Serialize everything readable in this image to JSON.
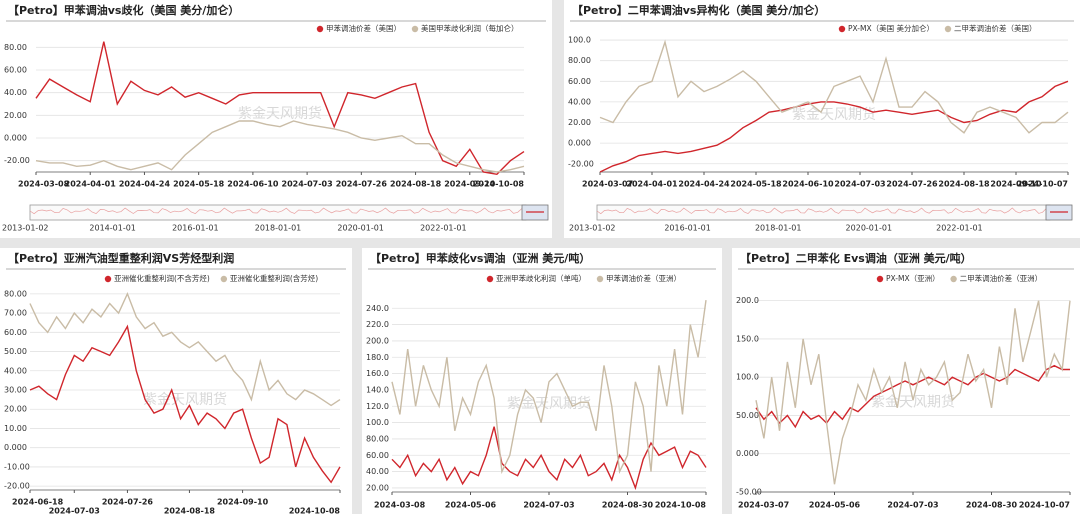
{
  "chart_data": [
    {
      "type": "line",
      "title": "【Petro】甲苯调油vs歧化（美国 美分/加仑）",
      "watermark": "紫金天风期货",
      "grid": true,
      "categories": [
        "2024-03-08",
        null,
        null,
        null,
        "2024-04-01",
        null,
        null,
        null,
        "2024-04-24",
        null,
        null,
        null,
        "2024-05-18",
        null,
        null,
        null,
        "2024-06-10",
        null,
        null,
        null,
        "2024-07-03",
        null,
        null,
        null,
        "2024-07-26",
        null,
        null,
        null,
        "2024-08-18",
        null,
        null,
        null,
        "2024-09-10",
        null,
        null,
        null,
        "2024-10-08"
      ],
      "series": [
        {
          "name": "甲苯调油价差（美国）",
          "color": "#d0262c",
          "values": [
            35,
            52,
            45,
            38,
            32,
            85,
            30,
            50,
            42,
            38,
            45,
            36,
            40,
            35,
            30,
            38,
            40,
            40,
            40,
            40,
            40,
            40,
            10,
            40,
            38,
            35,
            40,
            45,
            48,
            5,
            -20,
            -25,
            -10,
            -30,
            -32,
            -20,
            -12
          ]
        },
        {
          "name": "美国甲苯歧化利润（每加仑）",
          "color": "#c9bca6",
          "values": [
            -20,
            -22,
            -22,
            -25,
            -24,
            -20,
            -25,
            -28,
            -25,
            -22,
            -28,
            -15,
            -5,
            5,
            10,
            15,
            15,
            12,
            10,
            15,
            12,
            10,
            8,
            5,
            0,
            -2,
            0,
            2,
            -5,
            -5,
            -15,
            -22,
            -25,
            -28,
            -30,
            -28,
            -25
          ]
        }
      ],
      "ylim": [
        -30,
        90
      ],
      "yticks": [
        {
          "value": 80,
          "label": "80.00"
        },
        {
          "value": 60,
          "label": "60.00"
        },
        {
          "value": 40,
          "label": "40.00"
        },
        {
          "value": 20,
          "label": "20.00"
        },
        {
          "value": 0,
          "label": "0.000"
        },
        {
          "value": -20,
          "label": "-20.00"
        }
      ],
      "navigator_labels": [
        "2013-01-02",
        "2014-01-01",
        "2016-01-01",
        "2018-01-01",
        "2020-01-01",
        "2022-01-01"
      ]
    },
    {
      "type": "line",
      "title": "【Petro】二甲苯调油vs异构化（美国 美分/加仑）",
      "watermark": "紫金天风期货",
      "grid": true,
      "categories": [
        "2024-03-07",
        null,
        null,
        null,
        "2024-04-01",
        null,
        null,
        null,
        "2024-04-24",
        null,
        null,
        null,
        "2024-05-18",
        null,
        null,
        null,
        "2024-06-10",
        null,
        null,
        null,
        "2024-07-03",
        null,
        null,
        null,
        "2024-07-26",
        null,
        null,
        null,
        "2024-08-18",
        null,
        null,
        null,
        "2024-09-10",
        null,
        null,
        null,
        "2024-10-07"
      ],
      "series": [
        {
          "name": "PX-MX（美国 美分加仑）",
          "color": "#d0262c",
          "values": [
            -28,
            -22,
            -18,
            -12,
            -10,
            -8,
            -10,
            -8,
            -5,
            -2,
            5,
            15,
            22,
            30,
            32,
            35,
            38,
            40,
            40,
            38,
            35,
            30,
            32,
            30,
            28,
            30,
            32,
            25,
            20,
            22,
            28,
            32,
            30,
            40,
            45,
            55,
            60
          ]
        },
        {
          "name": "二甲苯调油价差（美国）",
          "color": "#c9bca6",
          "values": [
            25,
            20,
            40,
            55,
            60,
            98,
            45,
            60,
            50,
            55,
            62,
            70,
            60,
            45,
            30,
            35,
            40,
            30,
            55,
            60,
            65,
            40,
            82,
            35,
            35,
            50,
            40,
            20,
            10,
            30,
            35,
            30,
            25,
            10,
            20,
            20,
            30
          ]
        }
      ],
      "ylim": [
        -28,
        102
      ],
      "yticks": [
        {
          "value": 100,
          "label": "100.0"
        },
        {
          "value": 80,
          "label": "80.00"
        },
        {
          "value": 60,
          "label": "60.00"
        },
        {
          "value": 40,
          "label": "40.00"
        },
        {
          "value": 20,
          "label": "20.00"
        },
        {
          "value": 0,
          "label": "0.000"
        },
        {
          "value": -20,
          "label": "-20.00"
        }
      ],
      "navigator_labels": [
        "2013-01-02",
        "2016-01-01",
        "2018-01-01",
        "2020-01-01",
        "2022-01-01"
      ]
    },
    {
      "type": "line",
      "title": "【Petro】亚洲汽油型重整利润VS芳烃型利润",
      "watermark": "紫金天风期货",
      "grid": true,
      "categories": [
        "2024-06-18",
        null,
        null,
        null,
        null,
        "2024-07-03",
        null,
        null,
        null,
        null,
        null,
        "2024-07-26",
        null,
        null,
        null,
        null,
        null,
        null,
        "2024-08-18",
        null,
        null,
        null,
        null,
        null,
        "2024-09-10",
        null,
        null,
        null,
        null,
        null,
        null,
        null,
        null,
        null,
        null,
        "2024-10-08"
      ],
      "series": [
        {
          "name": "亚洲催化重整利润(不含芳烃)",
          "color": "#d0262c",
          "values": [
            30,
            32,
            28,
            25,
            38,
            48,
            45,
            52,
            50,
            48,
            55,
            63,
            40,
            25,
            18,
            20,
            30,
            15,
            22,
            12,
            18,
            15,
            10,
            18,
            20,
            5,
            -8,
            -5,
            15,
            12,
            -10,
            5,
            -5,
            -12,
            -18,
            -10
          ]
        },
        {
          "name": "亚洲催化重整利润(含芳烃)",
          "color": "#c9bca6",
          "values": [
            75,
            65,
            60,
            68,
            62,
            70,
            65,
            72,
            68,
            75,
            70,
            80,
            68,
            62,
            65,
            58,
            60,
            55,
            52,
            55,
            50,
            45,
            48,
            40,
            35,
            25,
            45,
            30,
            35,
            28,
            25,
            30,
            28,
            25,
            22,
            25
          ]
        }
      ],
      "ylim": [
        -22,
        82
      ],
      "yticks": [
        {
          "value": 80,
          "label": "80.00"
        },
        {
          "value": 70,
          "label": "70.00"
        },
        {
          "value": 60,
          "label": "60.00"
        },
        {
          "value": 50,
          "label": "50.00"
        },
        {
          "value": 40,
          "label": "40.00"
        },
        {
          "value": 30,
          "label": "30.00"
        },
        {
          "value": 20,
          "label": "20.00"
        },
        {
          "value": 10,
          "label": "10.00"
        },
        {
          "value": 0,
          "label": "0.000"
        },
        {
          "value": -10,
          "label": "-10.00"
        },
        {
          "value": -20,
          "label": "-20.00"
        }
      ]
    },
    {
      "type": "line",
      "title": "【Petro】甲苯歧化vs调油（亚洲 美元/吨）",
      "watermark": "紫金天风期货",
      "grid": true,
      "categories": [
        "2024-03-08",
        null,
        null,
        null,
        null,
        null,
        null,
        null,
        null,
        null,
        "2024-05-06",
        null,
        null,
        null,
        null,
        null,
        null,
        null,
        null,
        null,
        "2024-07-03",
        null,
        null,
        null,
        null,
        null,
        null,
        null,
        null,
        null,
        "2024-08-30",
        null,
        null,
        null,
        null,
        null,
        null,
        null,
        null,
        null,
        "2024-10-08"
      ],
      "series": [
        {
          "name": "亚洲甲苯歧化利润（单吨）",
          "color": "#d0262c",
          "values": [
            55,
            45,
            60,
            35,
            50,
            40,
            55,
            30,
            45,
            25,
            40,
            35,
            60,
            95,
            50,
            40,
            35,
            55,
            45,
            60,
            40,
            30,
            55,
            45,
            60,
            35,
            40,
            50,
            30,
            60,
            45,
            20,
            55,
            75,
            60,
            65,
            70,
            45,
            65,
            60,
            45
          ]
        },
        {
          "name": "甲苯调油价差（亚洲）",
          "color": "#c9bca6",
          "values": [
            150,
            110,
            190,
            120,
            170,
            140,
            120,
            180,
            90,
            130,
            110,
            150,
            170,
            130,
            40,
            60,
            110,
            140,
            130,
            100,
            150,
            160,
            140,
            120,
            125,
            125,
            90,
            170,
            120,
            40,
            60,
            150,
            120,
            40,
            170,
            120,
            190,
            110,
            220,
            180,
            250
          ]
        }
      ],
      "ylim": [
        15,
        255
      ],
      "yticks": [
        {
          "value": 240,
          "label": "240.0"
        },
        {
          "value": 220,
          "label": "220.0"
        },
        {
          "value": 200,
          "label": "200.0"
        },
        {
          "value": 180,
          "label": "180.0"
        },
        {
          "value": 160,
          "label": "160.0"
        },
        {
          "value": 140,
          "label": "140.0"
        },
        {
          "value": 120,
          "label": "120.0"
        },
        {
          "value": 100,
          "label": "100.0"
        },
        {
          "value": 80,
          "label": "80.00"
        },
        {
          "value": 60,
          "label": "60.00"
        },
        {
          "value": 40,
          "label": "40.00"
        },
        {
          "value": 20,
          "label": "20.00"
        }
      ]
    },
    {
      "type": "line",
      "title": "【Petro】二甲苯化 Evs调油（亚洲 美元/吨）",
      "watermark": "紫金天风期货",
      "grid": true,
      "categories": [
        "2024-03-07",
        null,
        null,
        null,
        null,
        null,
        null,
        null,
        null,
        null,
        "2024-05-06",
        null,
        null,
        null,
        null,
        null,
        null,
        null,
        null,
        null,
        "2024-07-03",
        null,
        null,
        null,
        null,
        null,
        null,
        null,
        null,
        null,
        "2024-08-30",
        null,
        null,
        null,
        null,
        null,
        null,
        null,
        null,
        null,
        "2024-10-07"
      ],
      "series": [
        {
          "name": "PX-MX（亚洲）",
          "color": "#d0262c",
          "values": [
            60,
            45,
            55,
            40,
            50,
            35,
            55,
            45,
            50,
            40,
            55,
            45,
            60,
            55,
            65,
            75,
            80,
            85,
            90,
            95,
            90,
            95,
            100,
            95,
            90,
            100,
            95,
            90,
            100,
            105,
            100,
            95,
            100,
            110,
            105,
            100,
            95,
            110,
            115,
            110,
            110
          ]
        },
        {
          "name": "二甲苯调油价差（亚洲）",
          "color": "#c9bca6",
          "values": [
            70,
            20,
            100,
            30,
            120,
            60,
            150,
            90,
            130,
            40,
            -40,
            20,
            50,
            90,
            70,
            110,
            80,
            100,
            60,
            120,
            70,
            110,
            90,
            100,
            120,
            70,
            80,
            130,
            95,
            110,
            60,
            140,
            90,
            190,
            120,
            160,
            200,
            100,
            130,
            110,
            200
          ]
        }
      ],
      "ylim": [
        -50,
        210
      ],
      "yticks": [
        {
          "value": 200,
          "label": "200.0"
        },
        {
          "value": 150,
          "label": "150.0"
        },
        {
          "value": 100,
          "label": "100.0"
        },
        {
          "value": 50,
          "label": "50.00"
        },
        {
          "value": 0,
          "label": "0.000"
        },
        {
          "value": -50,
          "label": "-50.00"
        }
      ]
    }
  ]
}
